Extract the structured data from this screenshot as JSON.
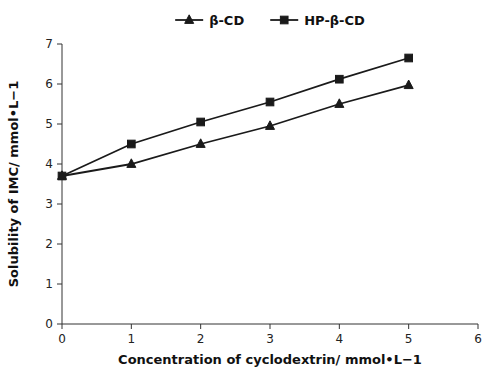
{
  "chart_data": {
    "type": "line",
    "x": [
      0,
      1,
      2,
      3,
      4,
      5
    ],
    "series": [
      {
        "name": "β-CD",
        "color": "#1a1a1a",
        "marker": "triangle",
        "values": [
          3.7,
          4.0,
          4.5,
          4.95,
          5.5,
          5.97
        ]
      },
      {
        "name": "HP-β-CD",
        "color": "#1a1a1a",
        "marker": "square",
        "values": [
          3.7,
          4.5,
          5.05,
          5.55,
          6.12,
          6.65
        ]
      }
    ],
    "xlabel": "Concentration of cyclodextrin/ mmol•L−1",
    "ylabel": "Solubility of IMC/ mmol•L−1",
    "xlim": [
      0,
      6
    ],
    "ylim": [
      0,
      7
    ],
    "xticks": [
      0,
      1,
      2,
      3,
      4,
      5,
      6
    ],
    "yticks": [
      0,
      1,
      2,
      3,
      4,
      5,
      6,
      7
    ],
    "legend": "top",
    "grid": false
  }
}
